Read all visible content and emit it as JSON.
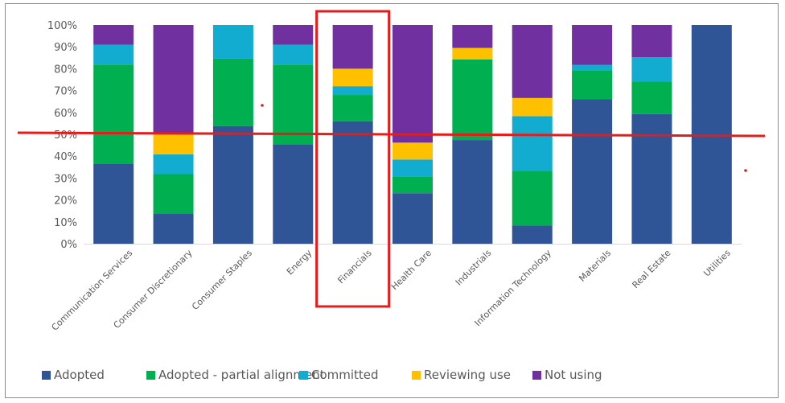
{
  "chart_data": {
    "type": "bar",
    "stacked": true,
    "percent_axis": true,
    "categories": [
      "Communication Services",
      "Consumer Discretionary",
      "Consumer Staples",
      "Energy",
      "Financials",
      "Health Care",
      "Industrials",
      "Information Technology",
      "Materials",
      "Real Estate",
      "Utilities"
    ],
    "y_ticks": [
      "0%",
      "10%",
      "20%",
      "30%",
      "40%",
      "50%",
      "60%",
      "70%",
      "80%",
      "90%",
      "100%"
    ],
    "ylim": [
      0,
      100
    ],
    "grid": false,
    "legend_position": "bottom",
    "series": [
      {
        "name": "Adopted",
        "color": "#2f5597",
        "values": [
          36.4,
          13.6,
          53.8,
          45.5,
          56.0,
          23.1,
          47.4,
          8.3,
          66.0,
          59.3,
          100.0
        ]
      },
      {
        "name": "Adopted - partial alignment",
        "color": "#00b050",
        "values": [
          45.5,
          18.2,
          30.8,
          36.4,
          12.0,
          7.7,
          36.8,
          25.0,
          13.2,
          14.8,
          0
        ]
      },
      {
        "name": "Committed",
        "color": "#12acd0",
        "values": [
          9.1,
          9.1,
          15.4,
          9.1,
          4.0,
          7.7,
          0,
          25.0,
          2.6,
          11.1,
          0
        ]
      },
      {
        "name": "Reviewing use",
        "color": "#ffc000",
        "values": [
          0,
          9.1,
          0,
          0,
          8.0,
          7.7,
          5.3,
          8.3,
          0,
          0,
          0
        ]
      },
      {
        "name": "Not using",
        "color": "#7030a0",
        "values": [
          9.0,
          50.0,
          0,
          9.0,
          20.0,
          53.8,
          10.5,
          33.4,
          18.2,
          14.8,
          0
        ]
      }
    ],
    "annotations": {
      "highlight_category": "Financials",
      "highlight_box_color": "#e31c1c",
      "reference_line_color": "#e31c1c"
    }
  }
}
